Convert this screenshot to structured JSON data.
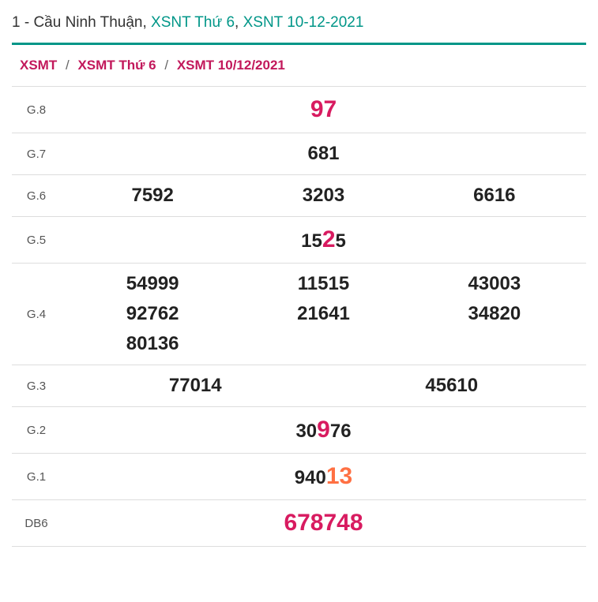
{
  "title": {
    "prefix": "1 - Cầu Ninh Thuận, ",
    "link1": "XSNT Thứ 6",
    "sep": ", ",
    "link2": "XSNT 10-12-2021"
  },
  "breadcrumb": {
    "a": "XSMT",
    "b": "XSMT Thứ 6",
    "c": "XSMT 10/12/2021"
  },
  "rows": {
    "g8": {
      "label": "G.8",
      "value": "97"
    },
    "g7": {
      "label": "G.7",
      "value": "681"
    },
    "g6": {
      "label": "G.6",
      "v1": "7592",
      "v2": "3203",
      "v3": "6616"
    },
    "g5": {
      "label": "G.5",
      "pre": "15",
      "hl": "2",
      "post": "5"
    },
    "g4": {
      "label": "G.4",
      "cells": [
        "54999",
        "11515",
        "43003",
        "92762",
        "21641",
        "34820",
        "80136",
        "",
        ""
      ]
    },
    "g3": {
      "label": "G.3",
      "v1": "77014",
      "v2": "45610"
    },
    "g2": {
      "label": "G.2",
      "pre": "30",
      "hl": "9",
      "post": "76"
    },
    "g1": {
      "label": "G.1",
      "pre": "940",
      "hl": "13",
      "post": ""
    },
    "db": {
      "label": "DB6",
      "value": "678748"
    }
  }
}
